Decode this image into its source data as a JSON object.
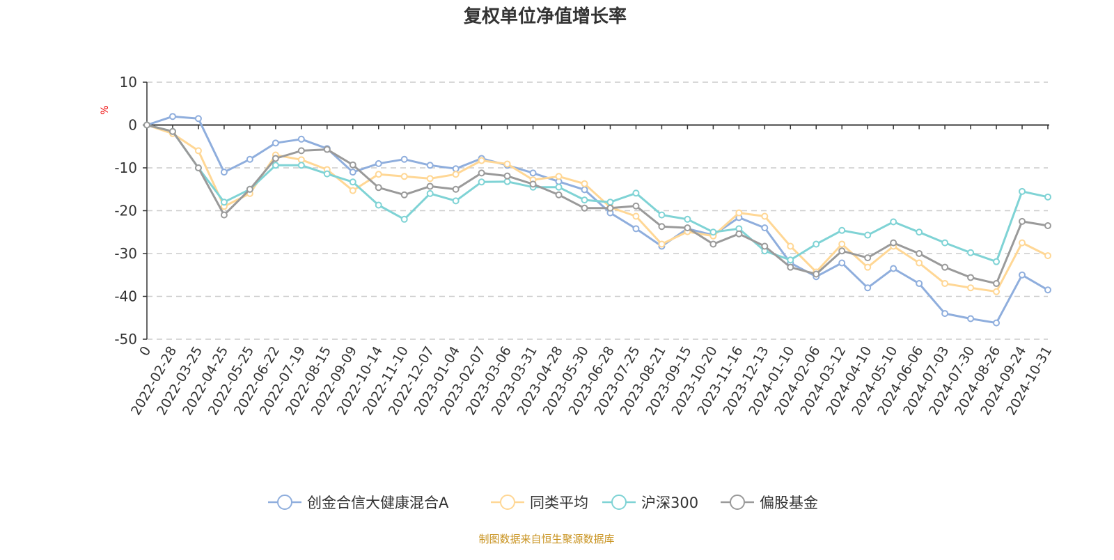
{
  "chart_data": {
    "type": "line",
    "title": "复权单位净值增长率",
    "ylabel": "%",
    "xlabel": "",
    "ylim": [
      -50,
      10
    ],
    "yticks": [
      10,
      0,
      -10,
      -20,
      -30,
      -40,
      -50
    ],
    "grid": true,
    "legend_position": "bottom",
    "x": [
      "0",
      "2022-02-28",
      "2022-03-25",
      "2022-04-25",
      "2022-05-25",
      "2022-06-22",
      "2022-07-19",
      "2022-08-15",
      "2022-09-09",
      "2022-10-14",
      "2022-11-10",
      "2022-12-07",
      "2023-01-04",
      "2023-02-07",
      "2023-03-06",
      "2023-03-31",
      "2023-04-28",
      "2023-05-30",
      "2023-06-28",
      "2023-07-25",
      "2023-08-21",
      "2023-09-15",
      "2023-10-20",
      "2023-11-16",
      "2023-12-13",
      "2024-01-10",
      "2024-02-06",
      "2024-03-12",
      "2024-04-10",
      "2024-05-10",
      "2024-06-06",
      "2024-07-03",
      "2024-07-30",
      "2024-08-26",
      "2024-09-24",
      "2024-10-31"
    ],
    "series": [
      {
        "name": "创金合信大健康混合A",
        "color": "#8FAEDD",
        "values": [
          0,
          2,
          1.5,
          -11,
          -8,
          -4.2,
          -3.3,
          -5.5,
          -11,
          -9,
          -8,
          -9.4,
          -10.2,
          -7.8,
          -9.4,
          -11.2,
          -13.2,
          -15.1,
          -20.5,
          -24.2,
          -28.3,
          -24.2,
          -25.7,
          -21.6,
          -24,
          -32.2,
          -35.4,
          -32.2,
          -38,
          -33.5,
          -37,
          -44,
          -45.2,
          -46.2,
          -35,
          -38.5
        ]
      },
      {
        "name": "同类平均",
        "color": "#FFD795",
        "values": [
          0,
          -2,
          -6,
          -19,
          -16,
          -7,
          -8.1,
          -10.4,
          -15.3,
          -11.5,
          -12,
          -12.5,
          -11.5,
          -8.3,
          -9.1,
          -12.8,
          -12,
          -13.7,
          -19.2,
          -21.3,
          -27.8,
          -24.9,
          -25.9,
          -20.5,
          -21.3,
          -28.3,
          -34.3,
          -27.8,
          -33.2,
          -28.3,
          -32.2,
          -37,
          -38,
          -38.9,
          -27.5,
          -30.5
        ]
      },
      {
        "name": "沪深300",
        "color": "#7FD3D5",
        "values": [
          0,
          -1.5,
          -10,
          -18,
          -15,
          -9.4,
          -9.4,
          -11.4,
          -13.3,
          -18.7,
          -22,
          -16,
          -17.7,
          -13.3,
          -13.2,
          -14.5,
          -14.5,
          -17.5,
          -18,
          -15.9,
          -21,
          -22,
          -25,
          -24.2,
          -29.4,
          -31.5,
          -27.8,
          -24.6,
          -25.7,
          -22.6,
          -25,
          -27.5,
          -29.8,
          -31.9,
          -15.5,
          -16.8
        ]
      },
      {
        "name": "偏股基金",
        "color": "#9A9A9A",
        "values": [
          0,
          -1.5,
          -10,
          -21,
          -15,
          -7.8,
          -6,
          -5.7,
          -9.3,
          -14.6,
          -16.3,
          -14.3,
          -15,
          -11.2,
          -11.9,
          -13.8,
          -16.3,
          -19.4,
          -19.4,
          -18.9,
          -23.7,
          -24,
          -27.8,
          -25.4,
          -28.3,
          -33.2,
          -34.8,
          -29.4,
          -31,
          -27.5,
          -30,
          -33.2,
          -35.6,
          -37,
          -22.5,
          -23.5
        ]
      }
    ]
  },
  "footer": {
    "source": "制图数据来自恒生聚源数据库"
  }
}
